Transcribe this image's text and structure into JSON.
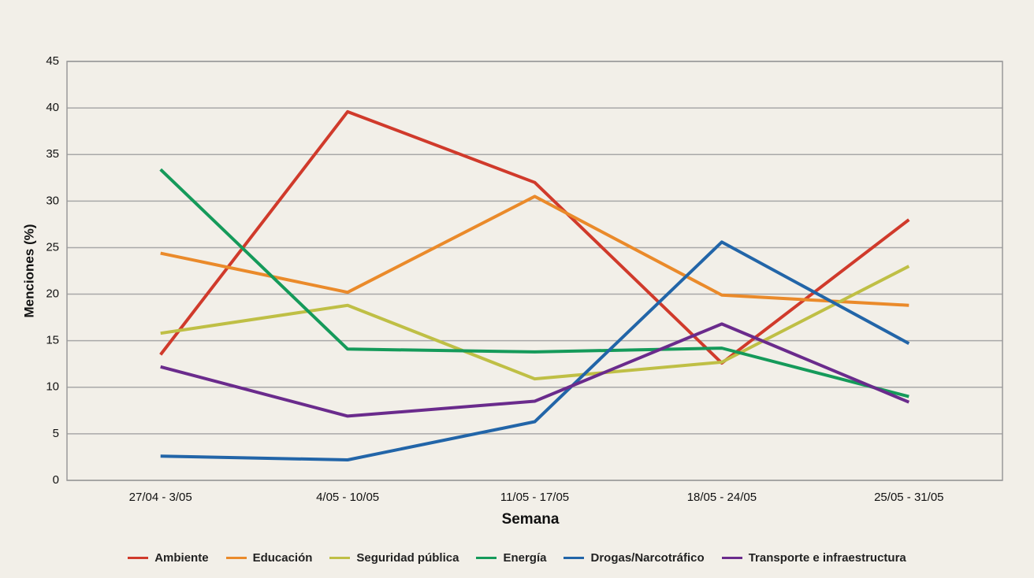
{
  "chart_data": {
    "type": "line",
    "x_label": "Semana",
    "y_label": "Menciones (%)",
    "categories": [
      "27/04 - 3/05",
      "4/05 - 10/05",
      "11/05 - 17/05",
      "18/05 - 24/05",
      "25/05 - 31/05"
    ],
    "series": [
      {
        "name": "Ambiente",
        "color": "#d03a2b",
        "values": [
          13.5,
          39.6,
          32.0,
          12.6,
          28.0
        ]
      },
      {
        "name": "Educación",
        "color": "#ea8a2a",
        "values": [
          24.4,
          20.2,
          30.5,
          19.9,
          18.8
        ]
      },
      {
        "name": "Seguridad pública",
        "color": "#bfbf45",
        "values": [
          15.8,
          18.8,
          10.9,
          12.7,
          23.0
        ]
      },
      {
        "name": "Energía",
        "color": "#159a5a",
        "values": [
          33.4,
          14.1,
          13.8,
          14.2,
          9.0
        ]
      },
      {
        "name": "Drogas/Narcotráfico",
        "color": "#2265a8",
        "values": [
          2.6,
          2.2,
          6.3,
          25.6,
          14.7
        ]
      },
      {
        "name": "Transporte e infraestructura",
        "color": "#6a2b8c",
        "values": [
          12.2,
          6.9,
          8.5,
          16.8,
          8.4
        ]
      }
    ],
    "ylim": [
      0,
      45
    ],
    "yticks": [
      0,
      5,
      10,
      15,
      20,
      25,
      30,
      35,
      40,
      45
    ],
    "grid": true,
    "legend": "bottom"
  }
}
